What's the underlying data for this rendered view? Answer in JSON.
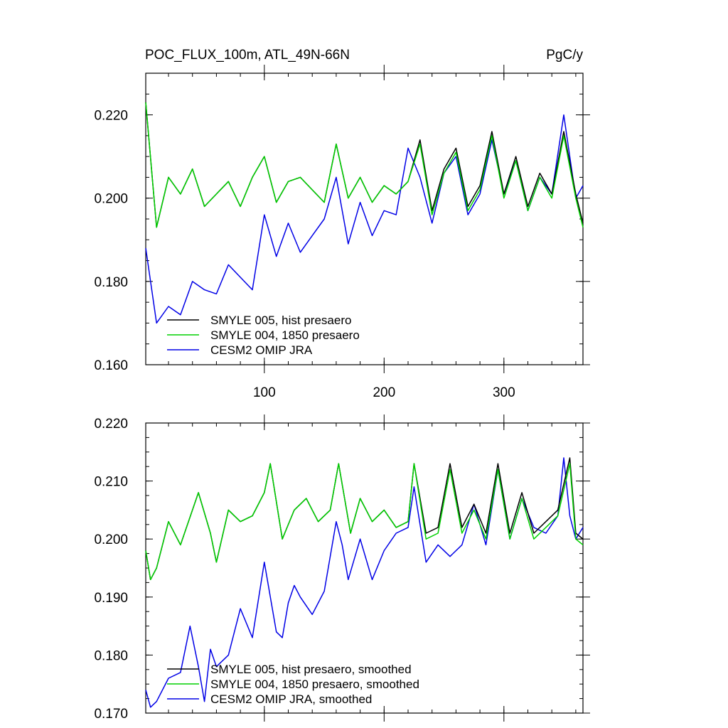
{
  "chart_data": [
    {
      "type": "line",
      "title_left": "POC_FLUX_100m, ATL_49N-66N",
      "title_right": "PgC/y",
      "xlabel": "",
      "ylabel": "",
      "xlim": [
        1,
        366
      ],
      "ylim": [
        0.16,
        0.23
      ],
      "x_ticks": [
        100,
        200,
        300
      ],
      "x_tick_labels": [
        "100",
        "200",
        "300"
      ],
      "y_ticks": [
        0.16,
        0.18,
        0.2,
        0.22
      ],
      "y_tick_labels": [
        "0.160",
        "0.180",
        "0.200",
        "0.220"
      ],
      "legend_position": "bottom-left",
      "series": [
        {
          "name": "SMYLE 005, hist presaero",
          "color": "#000000",
          "x": [
            1,
            10,
            20,
            30,
            40,
            50,
            60,
            70,
            80,
            90,
            100,
            110,
            120,
            130,
            140,
            150,
            160,
            170,
            180,
            190,
            200,
            210,
            220,
            230,
            240,
            250,
            260,
            270,
            280,
            290,
            300,
            310,
            320,
            330,
            340,
            350,
            360,
            366
          ],
          "values": [
            0.223,
            0.193,
            0.205,
            0.201,
            0.207,
            0.198,
            0.201,
            0.204,
            0.198,
            0.205,
            0.21,
            0.199,
            0.204,
            0.205,
            0.202,
            0.199,
            0.213,
            0.2,
            0.205,
            0.199,
            0.203,
            0.201,
            0.204,
            0.214,
            0.197,
            0.207,
            0.212,
            0.198,
            0.203,
            0.216,
            0.201,
            0.21,
            0.198,
            0.206,
            0.201,
            0.216,
            0.201,
            0.194
          ]
        },
        {
          "name": "SMYLE 004, 1850 presaero",
          "color": "#00d000",
          "x": [
            1,
            10,
            20,
            30,
            40,
            50,
            60,
            70,
            80,
            90,
            100,
            110,
            120,
            130,
            140,
            150,
            160,
            170,
            180,
            190,
            200,
            210,
            220,
            230,
            240,
            250,
            260,
            270,
            280,
            290,
            300,
            310,
            320,
            330,
            340,
            350,
            360,
            366
          ],
          "values": [
            0.223,
            0.193,
            0.205,
            0.201,
            0.207,
            0.198,
            0.201,
            0.204,
            0.198,
            0.205,
            0.21,
            0.199,
            0.204,
            0.205,
            0.202,
            0.199,
            0.213,
            0.2,
            0.205,
            0.199,
            0.203,
            0.201,
            0.204,
            0.213,
            0.196,
            0.206,
            0.211,
            0.197,
            0.202,
            0.215,
            0.2,
            0.209,
            0.197,
            0.205,
            0.2,
            0.215,
            0.2,
            0.193
          ]
        },
        {
          "name": "CESM2 OMIP JRA",
          "color": "#0000e6",
          "x": [
            1,
            10,
            20,
            30,
            40,
            50,
            60,
            70,
            80,
            90,
            100,
            110,
            120,
            130,
            140,
            150,
            160,
            170,
            180,
            190,
            200,
            210,
            220,
            230,
            240,
            250,
            260,
            270,
            280,
            290,
            300,
            310,
            320,
            330,
            340,
            350,
            360,
            366
          ],
          "values": [
            0.188,
            0.17,
            0.174,
            0.172,
            0.18,
            0.178,
            0.177,
            0.184,
            0.181,
            0.178,
            0.196,
            0.186,
            0.194,
            0.187,
            0.191,
            0.195,
            0.205,
            0.189,
            0.199,
            0.191,
            0.197,
            0.196,
            0.212,
            0.205,
            0.194,
            0.206,
            0.21,
            0.196,
            0.201,
            0.214,
            0.201,
            0.209,
            0.197,
            0.205,
            0.201,
            0.22,
            0.2,
            0.203
          ]
        }
      ]
    },
    {
      "type": "line",
      "xlabel": "",
      "ylabel": "",
      "xlim": [
        1,
        366
      ],
      "ylim": [
        0.17,
        0.22
      ],
      "y_ticks": [
        0.17,
        0.18,
        0.19,
        0.2,
        0.21,
        0.22
      ],
      "y_tick_labels": [
        "0.170",
        "0.180",
        "0.190",
        "0.200",
        "0.210",
        "0.220"
      ],
      "legend_position": "bottom-left",
      "series": [
        {
          "name": "SMYLE 005, hist presaero, smoothed",
          "color": "#000000",
          "x": [
            1,
            5,
            10,
            20,
            30,
            40,
            45,
            55,
            60,
            70,
            80,
            90,
            100,
            105,
            115,
            125,
            135,
            145,
            155,
            162,
            172,
            180,
            190,
            200,
            210,
            220,
            225,
            235,
            245,
            255,
            265,
            275,
            285,
            295,
            305,
            315,
            325,
            335,
            345,
            355,
            360,
            366
          ],
          "values": [
            0.198,
            0.193,
            0.195,
            0.203,
            0.199,
            0.205,
            0.208,
            0.201,
            0.196,
            0.205,
            0.203,
            0.204,
            0.208,
            0.213,
            0.2,
            0.205,
            0.207,
            0.203,
            0.205,
            0.213,
            0.201,
            0.207,
            0.203,
            0.205,
            0.202,
            0.203,
            0.213,
            0.201,
            0.202,
            0.213,
            0.202,
            0.206,
            0.201,
            0.213,
            0.201,
            0.208,
            0.201,
            0.203,
            0.205,
            0.214,
            0.201,
            0.2
          ]
        },
        {
          "name": "SMYLE 004, 1850 presaero, smoothed",
          "color": "#00d000",
          "x": [
            1,
            5,
            10,
            20,
            30,
            40,
            45,
            55,
            60,
            70,
            80,
            90,
            100,
            105,
            115,
            125,
            135,
            145,
            155,
            162,
            172,
            180,
            190,
            200,
            210,
            220,
            225,
            235,
            245,
            255,
            265,
            275,
            285,
            295,
            305,
            315,
            325,
            335,
            345,
            355,
            360,
            366
          ],
          "values": [
            0.198,
            0.193,
            0.195,
            0.203,
            0.199,
            0.205,
            0.208,
            0.201,
            0.196,
            0.205,
            0.203,
            0.204,
            0.208,
            0.213,
            0.2,
            0.205,
            0.207,
            0.203,
            0.205,
            0.213,
            0.201,
            0.207,
            0.203,
            0.205,
            0.202,
            0.203,
            0.213,
            0.2,
            0.201,
            0.212,
            0.201,
            0.205,
            0.2,
            0.212,
            0.2,
            0.207,
            0.2,
            0.202,
            0.204,
            0.213,
            0.2,
            0.199
          ]
        },
        {
          "name": "CESM2 OMIP JRA, smoothed",
          "color": "#0000e6",
          "x": [
            1,
            5,
            10,
            20,
            30,
            38,
            45,
            50,
            55,
            60,
            70,
            80,
            90,
            100,
            110,
            115,
            120,
            125,
            130,
            140,
            150,
            160,
            165,
            170,
            180,
            190,
            200,
            210,
            220,
            225,
            235,
            245,
            255,
            265,
            275,
            285,
            295,
            305,
            315,
            325,
            335,
            345,
            350,
            355,
            360,
            366
          ],
          "values": [
            0.174,
            0.171,
            0.172,
            0.176,
            0.177,
            0.185,
            0.178,
            0.172,
            0.181,
            0.178,
            0.18,
            0.188,
            0.183,
            0.196,
            0.184,
            0.183,
            0.189,
            0.192,
            0.19,
            0.187,
            0.191,
            0.203,
            0.199,
            0.193,
            0.2,
            0.193,
            0.198,
            0.201,
            0.202,
            0.209,
            0.196,
            0.199,
            0.197,
            0.199,
            0.206,
            0.199,
            0.212,
            0.2,
            0.207,
            0.202,
            0.201,
            0.204,
            0.214,
            0.204,
            0.2,
            0.202
          ]
        }
      ]
    }
  ]
}
